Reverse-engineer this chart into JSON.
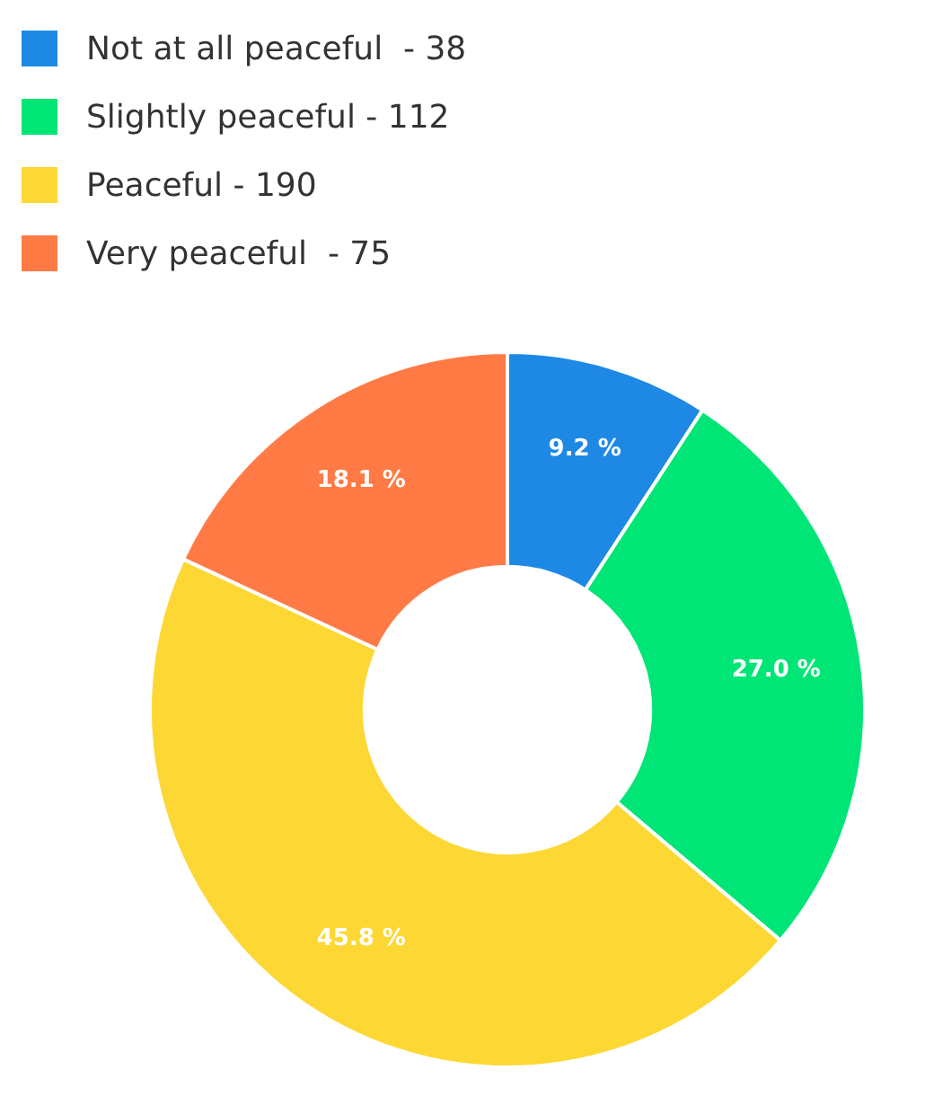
{
  "chart_data": {
    "type": "donut",
    "categories": [
      "Not at all peaceful  - 38",
      "Slightly peaceful - 112",
      "Peaceful - 190",
      "Very peaceful  - 75"
    ],
    "values": [
      9.2,
      27.0,
      45.8,
      18.1
    ],
    "colors": [
      "#1e88e5",
      "#00e676",
      "#fdd835",
      "#ff7a45"
    ],
    "value_labels": [
      "9.2 %",
      "27.0 %",
      "45.8 %",
      "18.1 %"
    ],
    "legend": "top left"
  }
}
